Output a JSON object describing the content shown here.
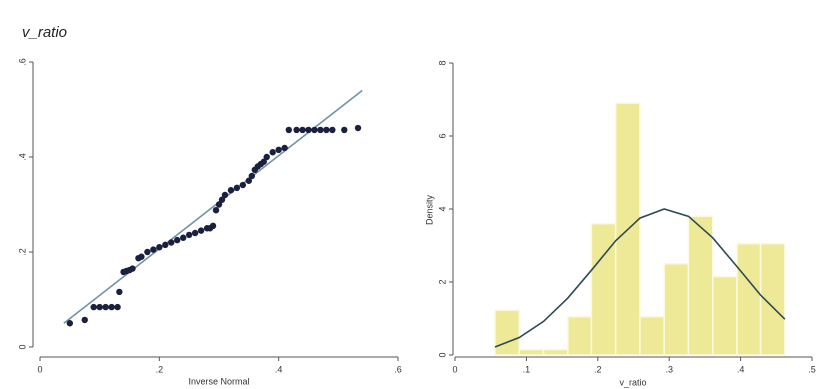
{
  "chart_data": [
    {
      "type": "scatter",
      "title": "v_ratio",
      "xlabel": "Inverse Normal",
      "x": [
        0.05,
        0.075,
        0.09,
        0.1,
        0.11,
        0.12,
        0.13,
        0.133,
        0.14,
        0.145,
        0.15,
        0.155,
        0.165,
        0.17,
        0.18,
        0.19,
        0.2,
        0.21,
        0.22,
        0.23,
        0.24,
        0.25,
        0.26,
        0.27,
        0.28,
        0.285,
        0.29,
        0.295,
        0.3,
        0.305,
        0.31,
        0.32,
        0.33,
        0.34,
        0.35,
        0.355,
        0.36,
        0.365,
        0.37,
        0.375,
        0.38,
        0.39,
        0.4,
        0.41,
        0.417,
        0.43,
        0.44,
        0.45,
        0.46,
        0.47,
        0.48,
        0.49,
        0.51,
        0.533
      ],
      "values": [
        0.05,
        0.057,
        0.084,
        0.084,
        0.084,
        0.084,
        0.084,
        0.116,
        0.158,
        0.16,
        0.162,
        0.165,
        0.187,
        0.19,
        0.2,
        0.205,
        0.21,
        0.215,
        0.22,
        0.225,
        0.23,
        0.236,
        0.24,
        0.245,
        0.25,
        0.25,
        0.255,
        0.288,
        0.3,
        0.31,
        0.32,
        0.33,
        0.335,
        0.341,
        0.35,
        0.36,
        0.373,
        0.38,
        0.385,
        0.39,
        0.4,
        0.41,
        0.415,
        0.419,
        0.457,
        0.457,
        0.457,
        0.457,
        0.457,
        0.457,
        0.457,
        0.457,
        0.457,
        0.461
      ],
      "color": "#1b2040",
      "reference_line": {
        "x": [
          0.04,
          0.54
        ],
        "values": [
          0.05,
          0.54
        ],
        "color": "#6f93a3"
      },
      "xlim": [
        0,
        0.6
      ],
      "ylim": [
        0,
        0.6
      ],
      "xticks": [
        0,
        {
          "value": 0.2,
          "label": ".2"
        },
        {
          "value": 0.4,
          "label": ".4"
        },
        {
          "value": 0.6,
          "label": ".6"
        }
      ],
      "yticks": [
        0,
        {
          "value": 0.2,
          "label": ".2"
        },
        {
          "value": 0.4,
          "label": ".4"
        },
        {
          "value": 0.6,
          "label": ".6"
        }
      ]
    },
    {
      "type": "histogram",
      "xlabel": "v_ratio",
      "ylabel": "Density",
      "bins": [
        0.056,
        0.09,
        0.124,
        0.158,
        0.191,
        0.225,
        0.259,
        0.293,
        0.327,
        0.361,
        0.395,
        0.428,
        0.462
      ],
      "values": [
        1.23,
        0.15,
        0.15,
        1.05,
        3.6,
        6.9,
        1.05,
        2.5,
        3.8,
        2.15,
        3.05,
        3.05
      ],
      "color": "#eee996",
      "density_curve": {
        "x": [
          0.056,
          0.09,
          0.124,
          0.158,
          0.191,
          0.225,
          0.259,
          0.293,
          0.327,
          0.361,
          0.395,
          0.428,
          0.462
        ],
        "values": [
          0.22,
          0.48,
          0.92,
          1.56,
          2.32,
          3.13,
          3.75,
          4.0,
          3.8,
          3.21,
          2.42,
          1.64,
          0.98
        ],
        "color": "#2c4a55"
      },
      "xlim": [
        0,
        0.5
      ],
      "ylim": [
        0,
        8
      ],
      "xticks": [
        0,
        {
          "value": 0.1,
          "label": ".1"
        },
        {
          "value": 0.2,
          "label": ".2"
        },
        {
          "value": 0.3,
          "label": ".3"
        },
        {
          "value": 0.4,
          "label": ".4"
        },
        {
          "value": 0.5,
          "label": ".5"
        }
      ],
      "yticks": [
        0,
        2,
        4,
        6,
        8
      ]
    }
  ]
}
